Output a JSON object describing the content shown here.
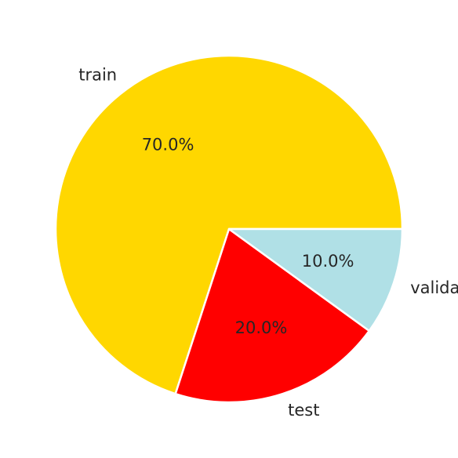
{
  "chart_data": {
    "type": "pie",
    "title": "",
    "start_angle_deg": 0,
    "direction": "counterclockwise",
    "slices": [
      {
        "label": "train",
        "value": 70.0,
        "pct_label": "70.0%",
        "color": "#FFD700"
      },
      {
        "label": "test",
        "value": 20.0,
        "pct_label": "20.0%",
        "color": "#FF0000"
      },
      {
        "label": "validation",
        "value": 10.0,
        "pct_label": "10.0%",
        "color": "#B0E0E6"
      }
    ]
  }
}
